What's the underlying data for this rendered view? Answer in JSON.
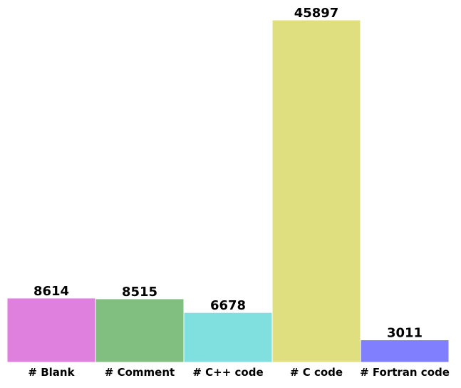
{
  "chart_data": {
    "type": "bar",
    "title": "",
    "xlabel": "",
    "ylabel": "",
    "categories": [
      "# Blank",
      "# Comment",
      "# C++ code",
      "# C code",
      "# Fortran code"
    ],
    "values": [
      8614,
      8515,
      6678,
      45897,
      3011
    ],
    "value_labels": [
      "8614",
      "8515",
      "6678",
      "45897",
      "3011"
    ],
    "colors": [
      "#df80df",
      "#80bf80",
      "#80dfdf",
      "#dfdf80",
      "#8080ff"
    ],
    "ylim": [
      0,
      45897
    ],
    "grid": false,
    "legend": "none",
    "axes_visible": false
  }
}
